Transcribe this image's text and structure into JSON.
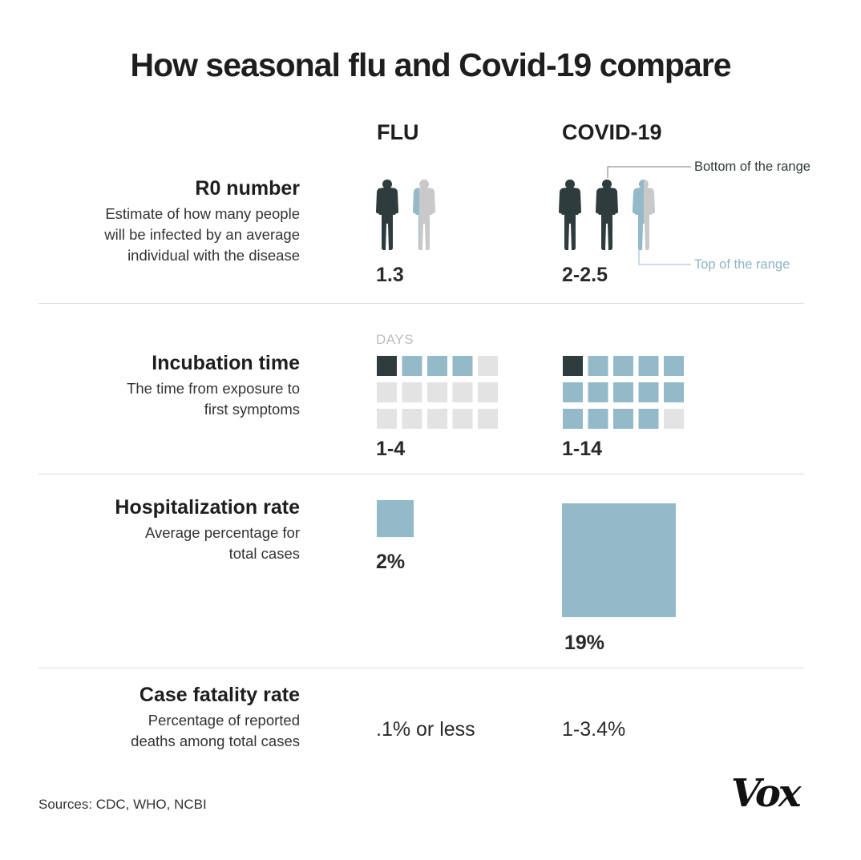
{
  "title": "How seasonal flu and Covid-19 compare",
  "columns": {
    "flu": "FLU",
    "covid": "COVID-19"
  },
  "colors": {
    "dark": "#2f3c3d",
    "blue": "#94b9c8",
    "gray": "#e3e3e3",
    "person_gray": "#c9c9c9"
  },
  "rows": {
    "r0": {
      "label": "R0 number",
      "desc_lines": [
        "Estimate of how many people",
        "will be infected by an average",
        "individual with the disease"
      ],
      "flu_value": "1.3",
      "covid_value": "2-2.5",
      "bottom_note": "Bottom of the range",
      "top_note": "Top of the range"
    },
    "incubation": {
      "label": "Incubation time",
      "desc_lines": [
        "The time from exposure to",
        "first symptoms"
      ],
      "days_label": "DAYS",
      "flu_value": "1-4",
      "covid_value": "1-14"
    },
    "hospitalization": {
      "label": "Hospitalization rate",
      "desc_lines": [
        "Average percentage for",
        "total cases"
      ],
      "flu_value": "2%",
      "covid_value": "19%"
    },
    "fatality": {
      "label": "Case fatality rate",
      "desc_lines": [
        "Percentage of reported",
        "deaths among total cases"
      ],
      "flu_value": ".1% or less",
      "covid_value": "1-3.4%"
    }
  },
  "sources": "Sources: CDC, WHO,  NCBI",
  "logo": "Vox",
  "chart_data": {
    "type": "table",
    "columns": [
      "FLU",
      "COVID-19"
    ],
    "rows": [
      {
        "metric": "R0 number",
        "flu": "1.3",
        "covid": "2-2.5",
        "flu_low": 1.3,
        "covid_low": 2,
        "covid_high": 2.5
      },
      {
        "metric": "Incubation time",
        "flu": "1-4",
        "covid": "1-14",
        "flu_days": [
          1,
          4
        ],
        "covid_days": [
          1,
          14
        ],
        "grid_days": 15
      },
      {
        "metric": "Hospitalization rate",
        "flu": "2%",
        "covid": "19%",
        "flu_pct": 2,
        "covid_pct": 19
      },
      {
        "metric": "Case fatality rate",
        "flu": ".1% or less",
        "covid": "1-3.4%"
      }
    ]
  }
}
